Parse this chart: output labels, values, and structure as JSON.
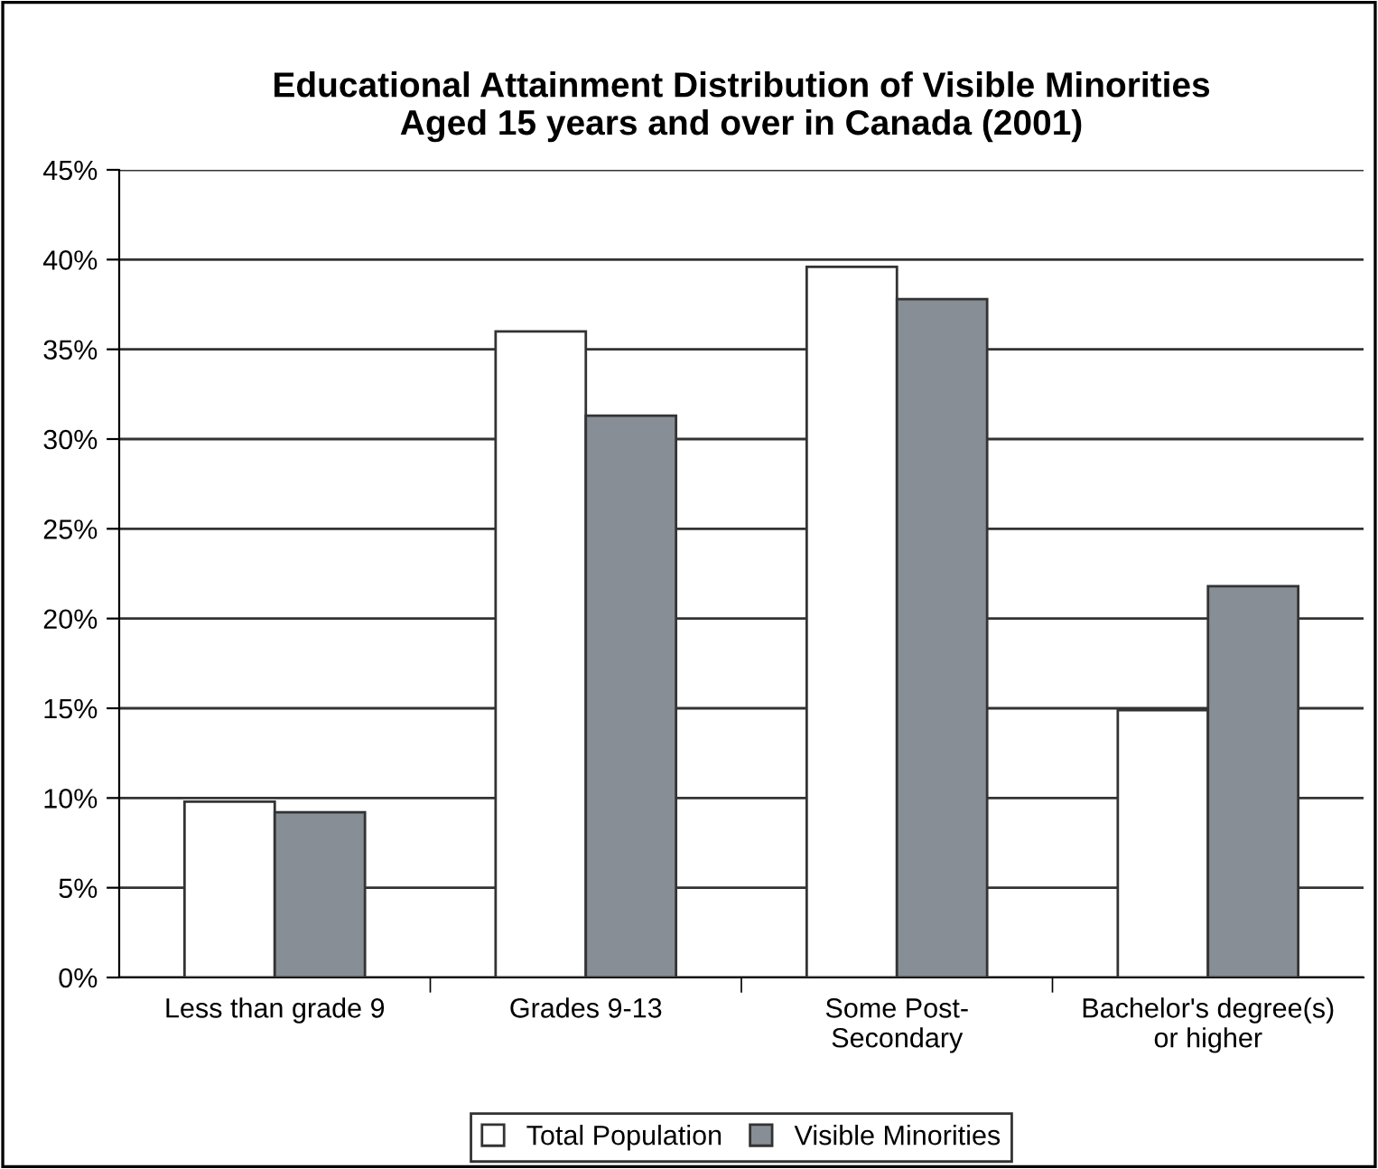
{
  "chart_data": {
    "type": "bar",
    "title": "Educational Attainment Distribution of Visible Minorities\nAged 15 years and over in Canada (2001)",
    "categories": [
      "Less than grade 9",
      "Grades 9-13",
      "Some Post-\nSecondary",
      "Bachelor's degree(s)\nor higher"
    ],
    "series": [
      {
        "name": "Total Population",
        "color": "#ffffff",
        "values": [
          9.8,
          36.0,
          39.6,
          14.9
        ]
      },
      {
        "name": "Visible Minorities",
        "color": "#888e95",
        "values": [
          9.2,
          31.3,
          37.8,
          21.8
        ]
      }
    ],
    "ylim": [
      0,
      45
    ],
    "yticks": [
      {
        "value": 0,
        "label": "0%"
      },
      {
        "value": 5,
        "label": "5%"
      },
      {
        "value": 10,
        "label": "10%"
      },
      {
        "value": 15,
        "label": "15%"
      },
      {
        "value": 20,
        "label": "20%"
      },
      {
        "value": 25,
        "label": "25%"
      },
      {
        "value": 30,
        "label": "30%"
      },
      {
        "value": 35,
        "label": "35%"
      },
      {
        "value": 40,
        "label": "40%"
      },
      {
        "value": 45,
        "label": "45%"
      }
    ],
    "grid": "y",
    "legend": "bottom"
  }
}
